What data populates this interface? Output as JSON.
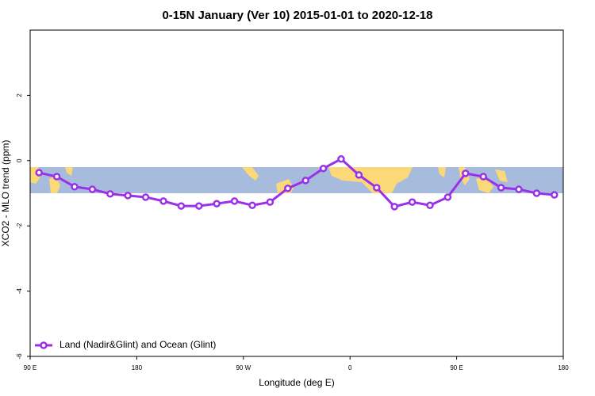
{
  "chart_data": {
    "type": "line",
    "title": "0-15N January (Ver 10)   2015-01-01 to 2020-12-18",
    "x_label": "Longitude (deg E)",
    "y_label": "XCO2 - MLO trend (ppm)",
    "xlim": [
      90,
      540
    ],
    "xticks": [
      {
        "value": 90,
        "label": "90 E"
      },
      180,
      {
        "value": 270,
        "label": "90 W"
      },
      {
        "value": 360,
        "label": "0"
      },
      {
        "value": 450,
        "label": "90 E"
      },
      {
        "value": 540,
        "label": "180"
      }
    ],
    "ylim": [
      -6,
      4
    ],
    "yticks": [
      -6,
      -4,
      -2,
      0,
      2
    ],
    "legend": "bottom-left",
    "x": [
      97.5,
      112.5,
      127.5,
      142.5,
      157.5,
      172.5,
      187.5,
      202.5,
      217.5,
      232.5,
      247.5,
      262.5,
      277.5,
      292.5,
      307.5,
      322.5,
      337.5,
      352.5,
      367.5,
      382.5,
      397.5,
      412.5,
      427.5,
      442.5,
      457.5,
      472.5,
      487.5,
      502.5,
      517.5,
      532.5
    ],
    "series": [
      {
        "name": "Land (Nadir&Glint) and Ocean (Glint)",
        "color": "#9b30e8",
        "values": [
          -0.37,
          -0.49,
          -0.8,
          -0.88,
          -1.02,
          -1.07,
          -1.12,
          -1.24,
          -1.39,
          -1.39,
          -1.32,
          -1.24,
          -1.37,
          -1.27,
          -0.85,
          -0.61,
          -0.24,
          0.05,
          -0.44,
          -0.83,
          -1.41,
          -1.27,
          -1.37,
          -1.12,
          -0.39,
          -0.49,
          -0.83,
          -0.88,
          -1.0,
          -1.05
        ]
      }
    ]
  }
}
